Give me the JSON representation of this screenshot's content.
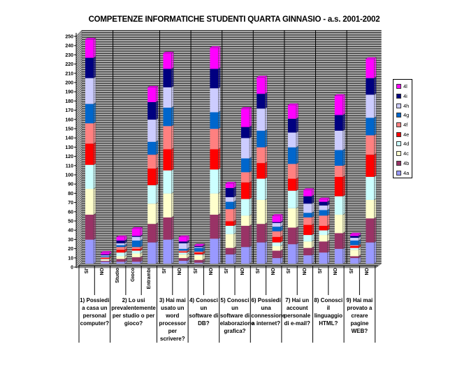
{
  "chart_data": {
    "type": "bar",
    "stacked": true,
    "title": "COMPETENZE INFORMATICHE STUDENTI QUARTA GINNASIO - a.s. 2001-2002",
    "ylim": [
      0,
      250
    ],
    "ytick_step": 10,
    "grid": true,
    "legend_position": "right",
    "categories": [
      "SI'",
      "NO",
      "Studio",
      "Gioco",
      "Entrambi",
      "SI'",
      "NO",
      "SI'",
      "NO",
      "SI'",
      "NO",
      "SI'",
      "NO",
      "SI'",
      "NO",
      "SI'",
      "NO",
      "SI'",
      "NO"
    ],
    "groups": [
      {
        "label": "1) Possiedi a casa un personal computer?",
        "span": 2
      },
      {
        "label": "2) Lo usi prevalentemente per studio o per gioco?",
        "span": 3
      },
      {
        "label": "3) Hai mai usato un word processor per scrivere?",
        "span": 2
      },
      {
        "label": "4) Conosci un software di DB?",
        "span": 2
      },
      {
        "label": "5) Conosci un software di elaborazione grafica?",
        "span": 2
      },
      {
        "label": "6) Possiedi una connessione a internet?",
        "span": 2
      },
      {
        "label": "7) Hai un account personale di e-mail?",
        "span": 2
      },
      {
        "label": "8) Conosci il linguaggio HTML?",
        "span": 2
      },
      {
        "label": "9) Hai mai provato a creare pagine WEB?",
        "span": 2
      }
    ],
    "series": [
      {
        "name": "4a",
        "color": "#9999ff",
        "values": [
          26,
          2,
          2,
          2,
          23,
          26,
          3,
          1,
          27,
          10,
          18,
          23,
          6,
          21,
          9,
          12,
          16,
          6,
          23
        ]
      },
      {
        "name": "4b",
        "color": "#993366",
        "values": [
          27,
          1,
          3,
          5,
          20,
          24,
          3,
          3,
          26,
          7,
          23,
          20,
          8,
          18,
          8,
          12,
          17,
          2,
          26
        ]
      },
      {
        "name": "4c",
        "color": "#ffffcc",
        "values": [
          28,
          1,
          3,
          4,
          22,
          26,
          4,
          5,
          23,
          15,
          11,
          26,
          5,
          21,
          7,
          7,
          20,
          7,
          20
        ]
      },
      {
        "name": "4d",
        "color": "#ccffff",
        "values": [
          26,
          1,
          4,
          3,
          20,
          25,
          2,
          1,
          26,
          9,
          18,
          23,
          4,
          19,
          7,
          5,
          20,
          2,
          25
        ]
      },
      {
        "name": "4e",
        "color": "#ff0000",
        "values": [
          23,
          1,
          3,
          2,
          18,
          23,
          1,
          2,
          22,
          5,
          18,
          17,
          6,
          13,
          11,
          5,
          21,
          2,
          24
        ]
      },
      {
        "name": "4f",
        "color": "#ff8080",
        "values": [
          22,
          1,
          3,
          2,
          15,
          25,
          1,
          1,
          22,
          13,
          11,
          17,
          6,
          16,
          8,
          11,
          12,
          1,
          21
        ]
      },
      {
        "name": "4g",
        "color": "#0066cc",
        "values": [
          21,
          1,
          2,
          7,
          14,
          20,
          2,
          4,
          18,
          8,
          15,
          18,
          5,
          18,
          5,
          6,
          17,
          5,
          19
        ]
      },
      {
        "name": "4h",
        "color": "#ccccff",
        "values": [
          28,
          1,
          2,
          4,
          24,
          22,
          6,
          1,
          26,
          5,
          22,
          24,
          4,
          16,
          10,
          5,
          21,
          3,
          25
        ]
      },
      {
        "name": "4i",
        "color": "#000080",
        "values": [
          22,
          1,
          3,
          1,
          19,
          20,
          2,
          1,
          21,
          10,
          12,
          16,
          1,
          15,
          8,
          4,
          17,
          2,
          18
        ]
      },
      {
        "name": "4l",
        "color": "#ff00ff",
        "values": [
          20,
          2,
          4,
          8,
          16,
          17,
          5,
          1,
          23,
          5,
          20,
          18,
          7,
          15,
          7,
          3,
          21,
          2,
          21
        ]
      }
    ]
  }
}
